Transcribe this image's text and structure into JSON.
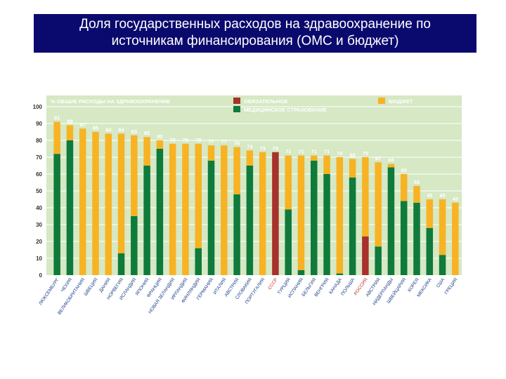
{
  "slide": {
    "title_line1": "Доля государственных расходов на здравоохранение по",
    "title_line2": "источникам финансирования (ОМС и бюджет)"
  },
  "chart_data": {
    "type": "bar",
    "stacked": true,
    "ylabel": "% ОБЩИЕ РАСХОДЫ НА ЗДРАВООХРАНЕНИЕ",
    "ylim": [
      0,
      100
    ],
    "yticks": [
      0,
      10,
      20,
      30,
      40,
      50,
      60,
      70,
      80,
      90,
      100
    ],
    "grid": true,
    "legend_position": "top",
    "colors": {
      "insurance": "#0f7a3c",
      "mandatory": "#a8312c",
      "budget": "#f7b324",
      "plot_bg": "#d6e8c4",
      "highlight_text": "#c0302b"
    },
    "categories": [
      "ЛЮКСЕМБУРГ",
      "ЧЕХИЯ",
      "ВЕЛИКОБРИТАНИЯ",
      "ШВЕЦИЯ",
      "ДАНИЯ",
      "НОРВЕГИЯ",
      "ИСЛАНДИЯ",
      "ЯПОНИЯ",
      "ФРАНЦИЯ",
      "НОВАЯ ЗЕЛАНДИЯ",
      "ИРЛАНДИЯ",
      "ФИНЛЯНДИЯ",
      "ГЕРМАНИЯ",
      "ИТАЛИЯ",
      "АВСТРИЯ",
      "СЛОВАКИЯ",
      "ПОРТУГАЛИЯ",
      "СССР",
      "ТУРЦИЯ",
      "ИСПАНИЯ",
      "БЕЛЬГИЯ",
      "ВЕНГРИЯ",
      "КАНАДА",
      "ПОЛЬША",
      "РОССИЯ",
      "АВСТРИЯ",
      "НИДЕРЛАНДЫ",
      "ШВЕЙЦАРИЯ",
      "КОРЕЯ",
      "МЕКСИКА",
      "США",
      "ГРЕЦИЯ"
    ],
    "highlighted_categories": [
      "СССР",
      "РОССИЯ"
    ],
    "totals": [
      91,
      89,
      87,
      85,
      84,
      84,
      83,
      82,
      80,
      78,
      78,
      78,
      77,
      77,
      76,
      74,
      73,
      73,
      71,
      71,
      71,
      71,
      70,
      69,
      70,
      67,
      66,
      60,
      53,
      45,
      45,
      43
    ],
    "series": [
      {
        "name": "ОБЯЗАТЕЛЬНОЕ",
        "key": "mandatory",
        "values": [
          0,
          0,
          0,
          0,
          0,
          0,
          0,
          0,
          0,
          0,
          0,
          0,
          0,
          0,
          0,
          0,
          0,
          73,
          0,
          0,
          0,
          0,
          0,
          0,
          23,
          0,
          0,
          0,
          0,
          0,
          0,
          0
        ]
      },
      {
        "name": "МЕДИЦИНСКОЕ СТРАХОВАНИЕ",
        "key": "insurance",
        "values": [
          72,
          80,
          0,
          0,
          0,
          13,
          35,
          65,
          75,
          0,
          0,
          16,
          68,
          0,
          48,
          65,
          0,
          0,
          39,
          3,
          68,
          60,
          1,
          58,
          0,
          17,
          64,
          44,
          43,
          28,
          12,
          0
        ]
      },
      {
        "name": "БЮДЖЕТ",
        "key": "budget",
        "values": [
          19,
          9,
          87,
          85,
          84,
          71,
          48,
          17,
          5,
          78,
          78,
          62,
          9,
          77,
          28,
          9,
          73,
          0,
          32,
          68,
          3,
          11,
          69,
          11,
          47,
          50,
          2,
          16,
          10,
          17,
          33,
          43
        ]
      }
    ]
  }
}
